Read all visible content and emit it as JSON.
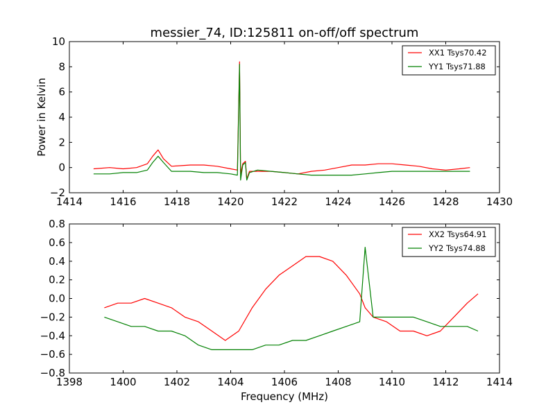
{
  "title": "messier_74, ID:125811 on-off/off spectrum",
  "chart_data": [
    {
      "type": "line",
      "title": "messier_74, ID:125811 on-off/off spectrum",
      "xlabel": "",
      "ylabel": "Power in Kelvin",
      "xlim": [
        1414,
        1430
      ],
      "ylim": [
        -2,
        10
      ],
      "xticks": [
        "1414",
        "1416",
        "1418",
        "1420",
        "1422",
        "1424",
        "1426",
        "1428",
        "1430"
      ],
      "yticks": [
        "−2",
        "0",
        "2",
        "4",
        "6",
        "8",
        "10"
      ],
      "grid": false,
      "legend_position": "top-right",
      "series": [
        {
          "name": "XX1 Tsys70.42",
          "color": "#ff0000",
          "x": [
            1414.9,
            1415.5,
            1416.0,
            1416.5,
            1416.9,
            1417.1,
            1417.3,
            1417.5,
            1417.8,
            1418.5,
            1419.0,
            1419.5,
            1420.0,
            1420.25,
            1420.33,
            1420.37,
            1420.45,
            1420.55,
            1420.6,
            1420.7,
            1421.0,
            1421.5,
            1422.0,
            1422.5,
            1423.0,
            1423.5,
            1424.0,
            1424.5,
            1425.0,
            1425.5,
            1426.0,
            1426.5,
            1427.0,
            1427.5,
            1428.0,
            1428.5,
            1428.9
          ],
          "y": [
            -0.1,
            0.0,
            -0.1,
            0.0,
            0.3,
            0.9,
            1.4,
            0.7,
            0.1,
            0.2,
            0.2,
            0.1,
            -0.1,
            -0.2,
            8.4,
            -0.5,
            0.3,
            0.5,
            -0.9,
            -0.3,
            -0.3,
            -0.3,
            -0.4,
            -0.5,
            -0.3,
            -0.2,
            0.0,
            0.2,
            0.2,
            0.3,
            0.3,
            0.2,
            0.1,
            -0.1,
            -0.2,
            -0.1,
            0.0
          ]
        },
        {
          "name": "YY1 Tsys71.88",
          "color": "#008000",
          "x": [
            1414.9,
            1415.5,
            1416.0,
            1416.5,
            1416.9,
            1417.1,
            1417.3,
            1417.5,
            1417.8,
            1418.5,
            1419.0,
            1419.5,
            1420.0,
            1420.25,
            1420.33,
            1420.37,
            1420.45,
            1420.55,
            1420.6,
            1420.7,
            1421.0,
            1421.5,
            1422.0,
            1422.5,
            1423.0,
            1423.5,
            1424.0,
            1424.5,
            1425.0,
            1425.5,
            1426.0,
            1426.5,
            1427.0,
            1427.5,
            1428.0,
            1428.5,
            1428.9
          ],
          "y": [
            -0.5,
            -0.5,
            -0.4,
            -0.4,
            -0.2,
            0.4,
            0.9,
            0.4,
            -0.3,
            -0.3,
            -0.4,
            -0.4,
            -0.5,
            -0.6,
            8.2,
            -1.0,
            0.2,
            0.4,
            -1.0,
            -0.4,
            -0.2,
            -0.3,
            -0.4,
            -0.5,
            -0.6,
            -0.6,
            -0.6,
            -0.6,
            -0.5,
            -0.4,
            -0.3,
            -0.3,
            -0.3,
            -0.3,
            -0.3,
            -0.3,
            -0.3
          ]
        }
      ]
    },
    {
      "type": "line",
      "title": "",
      "xlabel": "Frequency (MHz)",
      "ylabel": "",
      "xlim": [
        1398,
        1414
      ],
      "ylim": [
        -0.8,
        0.8
      ],
      "xticks": [
        "1398",
        "1400",
        "1402",
        "1404",
        "1406",
        "1408",
        "1410",
        "1412",
        "1414"
      ],
      "yticks": [
        "−0.8",
        "−0.6",
        "−0.4",
        "−0.2",
        "0.0",
        "0.2",
        "0.4",
        "0.6",
        "0.8"
      ],
      "grid": false,
      "legend_position": "top-right",
      "series": [
        {
          "name": "XX2 Tsys64.91",
          "color": "#ff0000",
          "x": [
            1399.3,
            1399.8,
            1400.3,
            1400.8,
            1401.3,
            1401.8,
            1402.3,
            1402.8,
            1403.3,
            1403.8,
            1404.3,
            1404.8,
            1405.3,
            1405.8,
            1406.3,
            1406.8,
            1407.3,
            1407.8,
            1408.3,
            1408.8,
            1409.0,
            1409.3,
            1409.8,
            1410.3,
            1410.8,
            1411.3,
            1411.8,
            1412.3,
            1412.8,
            1413.2
          ],
          "y": [
            -0.1,
            -0.05,
            -0.05,
            0.0,
            -0.05,
            -0.1,
            -0.2,
            -0.25,
            -0.35,
            -0.45,
            -0.35,
            -0.1,
            0.1,
            0.25,
            0.35,
            0.45,
            0.45,
            0.4,
            0.25,
            0.05,
            -0.1,
            -0.2,
            -0.25,
            -0.35,
            -0.35,
            -0.4,
            -0.35,
            -0.2,
            -0.05,
            0.05
          ]
        },
        {
          "name": "YY2 Tsys74.88",
          "color": "#008000",
          "x": [
            1399.3,
            1399.8,
            1400.3,
            1400.8,
            1401.3,
            1401.8,
            1402.3,
            1402.8,
            1403.3,
            1403.8,
            1404.3,
            1404.8,
            1405.3,
            1405.8,
            1406.3,
            1406.8,
            1407.3,
            1407.8,
            1408.3,
            1408.8,
            1409.0,
            1409.3,
            1409.8,
            1410.3,
            1410.8,
            1411.3,
            1411.8,
            1412.3,
            1412.8,
            1413.2
          ],
          "y": [
            -0.2,
            -0.25,
            -0.3,
            -0.3,
            -0.35,
            -0.35,
            -0.4,
            -0.5,
            -0.55,
            -0.55,
            -0.55,
            -0.55,
            -0.5,
            -0.5,
            -0.45,
            -0.45,
            -0.4,
            -0.35,
            -0.3,
            -0.25,
            0.55,
            -0.2,
            -0.2,
            -0.2,
            -0.2,
            -0.25,
            -0.3,
            -0.3,
            -0.3,
            -0.35
          ]
        }
      ]
    }
  ]
}
